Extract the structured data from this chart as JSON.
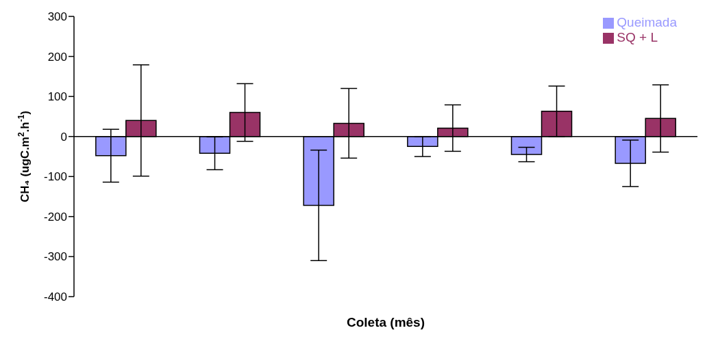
{
  "chart_data": {
    "type": "bar",
    "xlabel": "Coleta (mês)",
    "ylabel": "CH₄ (ugC.m$^{2}$.h$^{-1}$)",
    "categories": [
      null,
      null,
      null,
      null,
      null,
      null
    ],
    "series": [
      {
        "name": "Queimada",
        "color": "#9999ff",
        "values": [
          -48,
          -42,
          -172,
          -25,
          -45,
          -67
        ],
        "errors": [
          66,
          41,
          138,
          25,
          18,
          58
        ]
      },
      {
        "name": "SQ + L",
        "color": "#993366",
        "values": [
          40,
          60,
          33,
          21,
          63,
          45
        ],
        "errors": [
          139,
          72,
          87,
          58,
          63,
          84
        ]
      }
    ],
    "ylim": [
      -400,
      300
    ],
    "yticks": [
      -400,
      -300,
      -200,
      -100,
      0,
      100,
      200,
      300
    ],
    "ref_lines": [
      {
        "axis": "y",
        "value": 0,
        "color": "#000000"
      }
    ],
    "legend": "top right"
  }
}
